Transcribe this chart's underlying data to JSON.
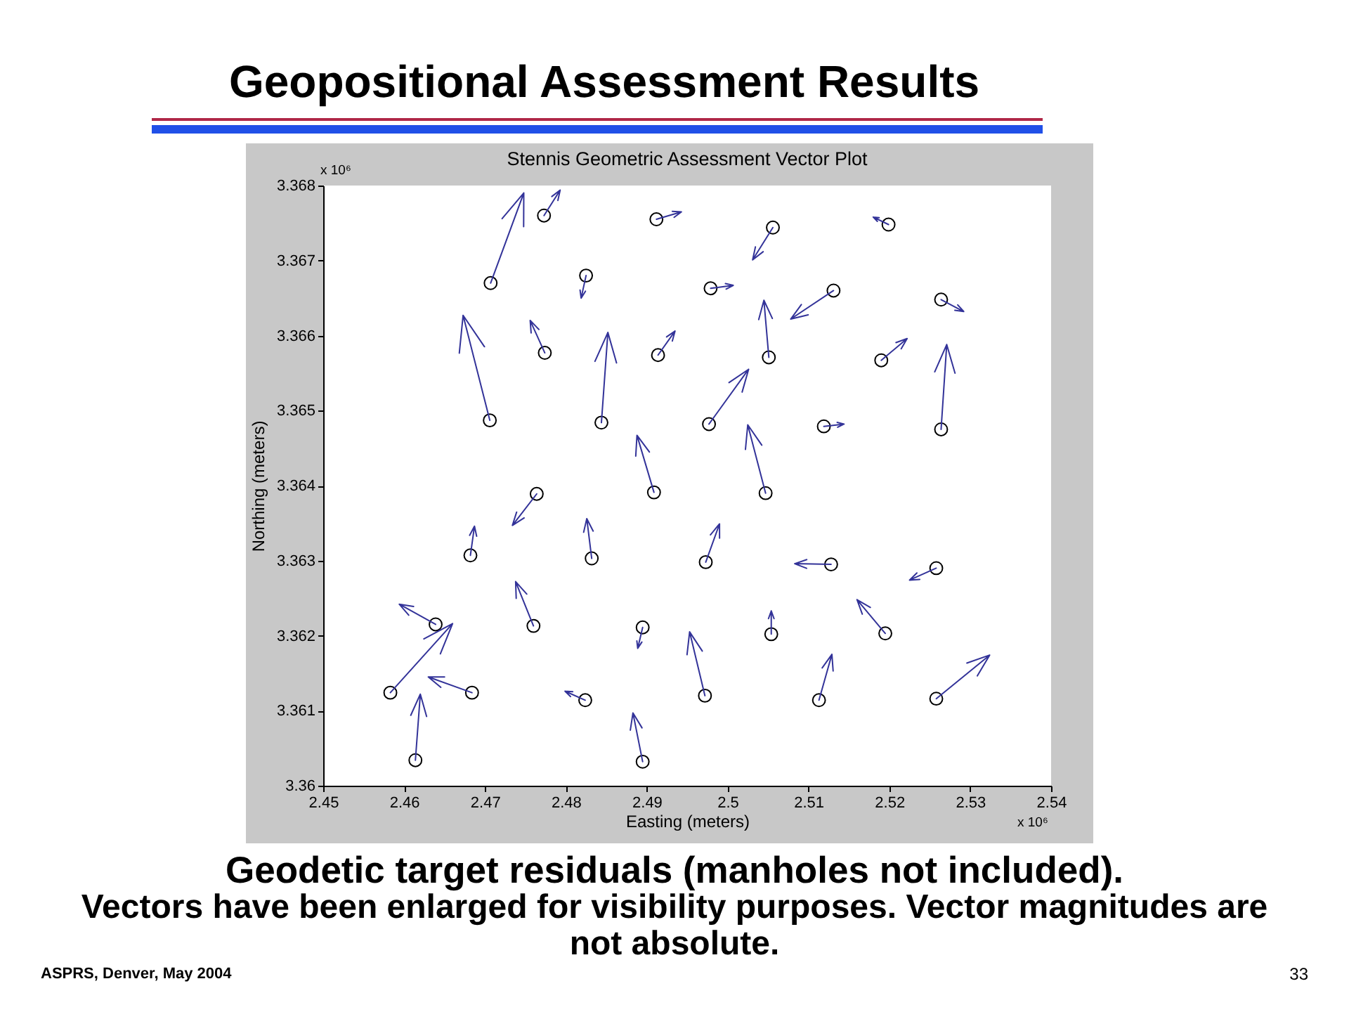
{
  "chart_data": {
    "type": "scatter",
    "title": "Geopositional Assessment Results",
    "subtitle": "Stennis Geometric Assessment Vector Plot",
    "xlabel": "Easting (meters)",
    "ylabel": "Northing (meters)",
    "annotations": [
      "x 10⁶",
      "x 10⁶",
      "Geodetic target residuals (manholes not included).",
      "Vectors have been enlarged for visibility purposes. Vector magnitudes are not absolute.",
      "ASPRS, Denver, May 2004",
      "33"
    ],
    "xlim": [
      2.45,
      2.54
    ],
    "ylim": [
      3.36,
      3.368
    ],
    "xticks": [
      2.45,
      2.46,
      2.47,
      2.48,
      2.49,
      2.5,
      2.51,
      2.52,
      2.53,
      2.54
    ],
    "yticks": [
      3.36,
      3.361,
      3.362,
      3.363,
      3.364,
      3.365,
      3.366,
      3.367,
      3.368
    ],
    "marker": "circle",
    "color": "#000000",
    "x": [
      2.4707,
      2.4773,
      2.4912,
      2.4825,
      2.4706,
      2.4774,
      2.4844,
      2.4914,
      2.4909,
      2.4764,
      2.5199,
      2.5056,
      2.4979,
      2.5131,
      2.5264,
      2.5051,
      2.519,
      2.5264,
      2.4977,
      2.5119,
      2.5047,
      2.4682,
      2.4832,
      2.4639,
      2.476,
      2.4895,
      2.4583,
      2.4684,
      2.4824,
      2.4614,
      2.4895,
      2.4973,
      2.5128,
      2.5258,
      2.5054,
      2.5195,
      2.4972,
      2.5113,
      2.5258
    ],
    "values": [
      3.3667,
      3.3676,
      3.36755,
      3.3668,
      3.36487,
      3.36577,
      3.36484,
      3.36574,
      3.36391,
      3.36389,
      3.36748,
      3.36744,
      3.36663,
      3.3666,
      3.36648,
      3.36571,
      3.36567,
      3.36475,
      3.36482,
      3.36479,
      3.3639,
      3.36307,
      3.36303,
      3.36215,
      3.36213,
      3.36211,
      3.36124,
      3.36124,
      3.36114,
      3.36034,
      3.36032,
      3.36298,
      3.36295,
      3.3629,
      3.36202,
      3.36203,
      3.3612,
      3.36114,
      3.36116
    ]
  }
}
